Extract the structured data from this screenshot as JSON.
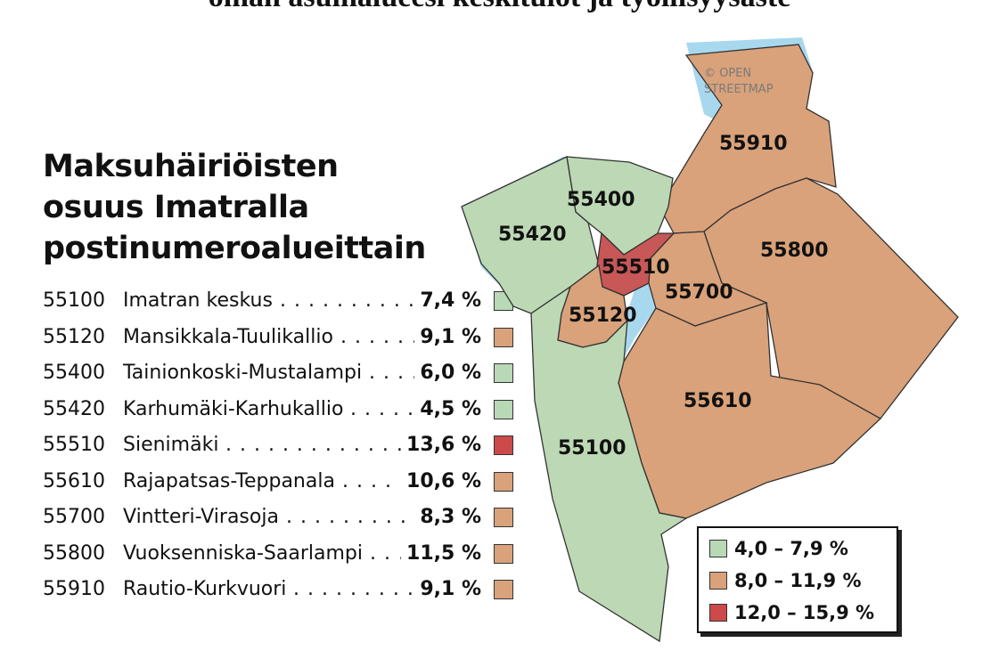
{
  "caption_partial": "oman asuinalueesi keskitulot ja työllisyysaste",
  "title_lines": [
    "Maksuhäiriöisten",
    "osuus Imatralla",
    "postinumeroalueittain"
  ],
  "colors": {
    "low": "#b8d8b6",
    "mid": "#d9a27a",
    "high": "#cc4a4a",
    "water": "#a8d8ee",
    "area_green": "#bcd8b4",
    "area_orange": "#d9a27a",
    "area_red": "#c85757",
    "border": "#333333"
  },
  "areas": [
    {
      "code": "55100",
      "name": "Imatran keskus",
      "share_pct": 7.4,
      "share_label": "7,4 %",
      "class": "low"
    },
    {
      "code": "55120",
      "name": "Mansikkala-Tuulikallio",
      "share_pct": 9.1,
      "share_label": "9,1 %",
      "class": "mid"
    },
    {
      "code": "55400",
      "name": "Tainionkoski-Mustalampi",
      "share_pct": 6.0,
      "share_label": "6,0 %",
      "class": "low"
    },
    {
      "code": "55420",
      "name": "Karhumäki-Karhukallio",
      "share_pct": 4.5,
      "share_label": "4,5 %",
      "class": "low"
    },
    {
      "code": "55510",
      "name": "Sienimäki",
      "share_pct": 13.6,
      "share_label": "13,6 %",
      "class": "high"
    },
    {
      "code": "55610",
      "name": "Rajapatsas-Teppanala",
      "share_pct": 10.6,
      "share_label": "10,6 %",
      "class": "mid"
    },
    {
      "code": "55700",
      "name": "Vintteri-Virasoja",
      "share_pct": 8.3,
      "share_label": "8,3 %",
      "class": "mid"
    },
    {
      "code": "55800",
      "name": "Vuoksenniska-Saarlampi",
      "share_pct": 11.5,
      "share_label": "11,5 %",
      "class": "mid"
    },
    {
      "code": "55910",
      "name": "Rautio-Kurkvuori",
      "share_pct": 9.1,
      "share_label": "9,1 %",
      "class": "mid"
    }
  ],
  "map_labels": {
    "z55910": "55910",
    "z55400": "55400",
    "z55420": "55420",
    "z55800": "55800",
    "z55510": "55510",
    "z55700": "55700",
    "z55120": "55120",
    "z55610": "55610",
    "z55100": "55100"
  },
  "attribution": [
    "© OPEN",
    "STREETMAP"
  ],
  "legend": [
    {
      "range": "4,0 – 7,9 %",
      "class": "low"
    },
    {
      "range": "8,0 – 11,9 %",
      "class": "mid"
    },
    {
      "range": "12,0  –  15,9 %",
      "class": "high"
    }
  ]
}
